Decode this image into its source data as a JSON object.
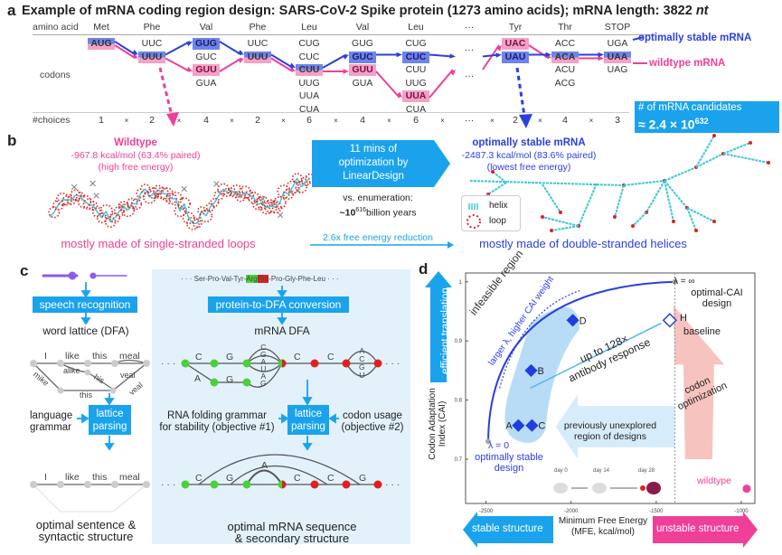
{
  "colors": {
    "stable": "#2b3fe0",
    "wildtype": "#ef3f97",
    "accent": "#1aa3ec",
    "panel_bg": "#e3f1fb",
    "loop": "#e02020",
    "helix": "#3cc7d6"
  },
  "panel_a": {
    "label": "a",
    "title": "Example of mRNA coding region design: SARS-CoV-2 Spike protein (1273 amino acids); mRNA length: 3822 ",
    "title_italic": "nt",
    "row_amino": "amino acid",
    "row_codons": "codons",
    "row_choices": "#choices",
    "columns": [
      {
        "aa": "Met",
        "codons": [
          "AUG"
        ],
        "stable": 0,
        "wildtype": 0,
        "choices": "1"
      },
      {
        "aa": "Phe",
        "codons": [
          "UUC",
          "UUU"
        ],
        "stable": 1,
        "wildtype": 1,
        "choices": "2"
      },
      {
        "aa": "Val",
        "codons": [
          "GUG",
          "GUC",
          "GUU",
          "GUA"
        ],
        "stable": 0,
        "wildtype": 2,
        "choices": "4"
      },
      {
        "aa": "Phe",
        "codons": [
          "UUC",
          "UUU"
        ],
        "stable": 1,
        "wildtype": 1,
        "choices": "2"
      },
      {
        "aa": "Leu",
        "codons": [
          "CUG",
          "CUC",
          "CUU",
          "UUG",
          "UUA",
          "CUA"
        ],
        "stable": 2,
        "wildtype": 2,
        "choices": "6"
      },
      {
        "aa": "Val",
        "codons": [
          "GUG",
          "GUC",
          "GUU",
          "GUA"
        ],
        "stable": 1,
        "wildtype": 2,
        "choices": "4"
      },
      {
        "aa": "Leu",
        "codons": [
          "CUG",
          "CUC",
          "CUU",
          "UUG",
          "UUA",
          "CUA"
        ],
        "stable": 1,
        "wildtype": 4,
        "choices": "6"
      },
      {
        "aa": "···",
        "codons": [],
        "ellipsis": true,
        "choices": "···"
      },
      {
        "aa": "Tyr",
        "codons": [
          "UAC",
          "UAU"
        ],
        "stable": 1,
        "wildtype": 0,
        "choices": "2"
      },
      {
        "aa": "Thr",
        "codons": [
          "ACC",
          "ACA",
          "ACU",
          "ACG"
        ],
        "stable": 1,
        "wildtype": 1,
        "choices": "4"
      },
      {
        "aa": "STOP",
        "codons": [
          "UGA",
          "UAA",
          "UAG"
        ],
        "stable": 1,
        "wildtype": 1,
        "choices": "3"
      }
    ],
    "times": "×",
    "stable_label": "optimally stable mRNA",
    "wildtype_label": "wildtype mRNA",
    "candidates_label": "# of mRNA candidates",
    "candidates_value": "≈ 2.4 × 10",
    "candidates_exp": "632"
  },
  "panel_b": {
    "label": "b",
    "wt_title": "Wildtype",
    "wt_energy": "-967.8 kcal/mol (63.4% paired)",
    "wt_note": "(high free energy)",
    "wt_caption": "mostly made of single-stranded loops",
    "arrow_text": [
      "11 mins of",
      "optimization by",
      "LinearDesign"
    ],
    "enum_label": "vs. enumeration:",
    "enum_value": "~10",
    "enum_exp": "616",
    "enum_unit": "billion years",
    "reduction": "2.6x free energy reduction",
    "legend_helix": "helix",
    "legend_loop": "loop",
    "opt_title": "optimally stable mRNA",
    "opt_energy": "-2487.3 kcal/mol (83.6% paired)",
    "opt_note": "(lowest free energy)",
    "opt_caption": "mostly made of double-stranded helices"
  },
  "panel_c": {
    "label": "c",
    "speech_recognition": "speech recognition",
    "word_lattice": "word lattice (DFA)",
    "words_top": [
      "I",
      "like",
      "this",
      "meal"
    ],
    "words_alt": [
      "alike",
      "his",
      "veal",
      "this",
      "mike",
      "veal"
    ],
    "language_grammar": [
      "language",
      "grammar"
    ],
    "lattice_parsing": [
      "lattice",
      "parsing"
    ],
    "optimal_sentence": [
      "optimal sentence &",
      "syntactic structure"
    ],
    "protein_seq_pre": "· · · Ser-Pro-Val-Tyr-",
    "protein_arg": "Arg",
    "protein_pro": "Pro",
    "protein_seq_post": "-Pro-Gly-Phe-Leu · · ·",
    "protein_to_dfa": "protein-to-DFA conversion",
    "mrna_dfa": "mRNA DFA",
    "rna_folding": [
      "RNA folding grammar",
      "for stability (objective #1)"
    ],
    "codon_usage": [
      "codon usage",
      "(objective #2)"
    ],
    "optimal_mrna": [
      "optimal mRNA sequence",
      "& secondary structure"
    ],
    "dfa_letters": {
      "top": [
        "C",
        "G",
        "C",
        "C"
      ],
      "bottom": [
        "A",
        "G"
      ],
      "stack1": [
        "C",
        "G",
        "A",
        "U",
        "A",
        "G"
      ],
      "stack2": [
        "A",
        "C",
        "G",
        "U"
      ]
    },
    "ellipsis": "· · ·"
  },
  "panel_d": {
    "label": "d",
    "ylabel": [
      "Codon Adaptation",
      "Index (CAI)"
    ],
    "xlabel": [
      "Minimum Free Energy",
      "(MFE, kcal/mol)"
    ],
    "xticks": [
      -2500,
      -2000,
      -1500,
      -1000
    ],
    "yticks": [
      0.7,
      0.8,
      0.9,
      1
    ],
    "xlim": [
      -2620,
      -920
    ],
    "ylim": [
      0.625,
      1.015
    ],
    "efficient_translation": "efficient translation",
    "stable_structure": "stable structure",
    "unstable_structure": "unstable structure",
    "infeasible": "infeasible region",
    "larger_lambda": "larger λ, higher CAI weight",
    "antibody": [
      "up to 128×",
      "antibody response"
    ],
    "codon_opt": [
      "codon",
      "optimization"
    ],
    "unexplored": [
      "previously unexplored",
      "region of designs"
    ],
    "lambda_inf": "λ = ∞",
    "optimal_cai": [
      "optimal-CAI",
      "design"
    ],
    "lambda_zero": "λ = 0",
    "optimally_stable": [
      "optimally stable",
      "design"
    ],
    "baseline": "baseline",
    "wildtype": "wildtype",
    "days": [
      "day 0",
      "day 14",
      "day 28"
    ],
    "designs": [
      {
        "name": "A",
        "mfe": -2310,
        "cai": 0.757
      },
      {
        "name": "C",
        "mfe": -2230,
        "cai": 0.757
      },
      {
        "name": "B",
        "mfe": -2235,
        "cai": 0.85
      },
      {
        "name": "D",
        "mfe": -1990,
        "cai": 0.935
      }
    ],
    "baseline_point": {
      "name": "H",
      "mfe": -1420,
      "cai": 0.935
    },
    "wildtype_point": {
      "mfe": -968,
      "cai": 0.65
    },
    "lambda0_point": {
      "mfe": -2487,
      "cai": 0.73
    },
    "lambdainf_point": {
      "mfe": -1390,
      "cai": 1.0
    }
  }
}
